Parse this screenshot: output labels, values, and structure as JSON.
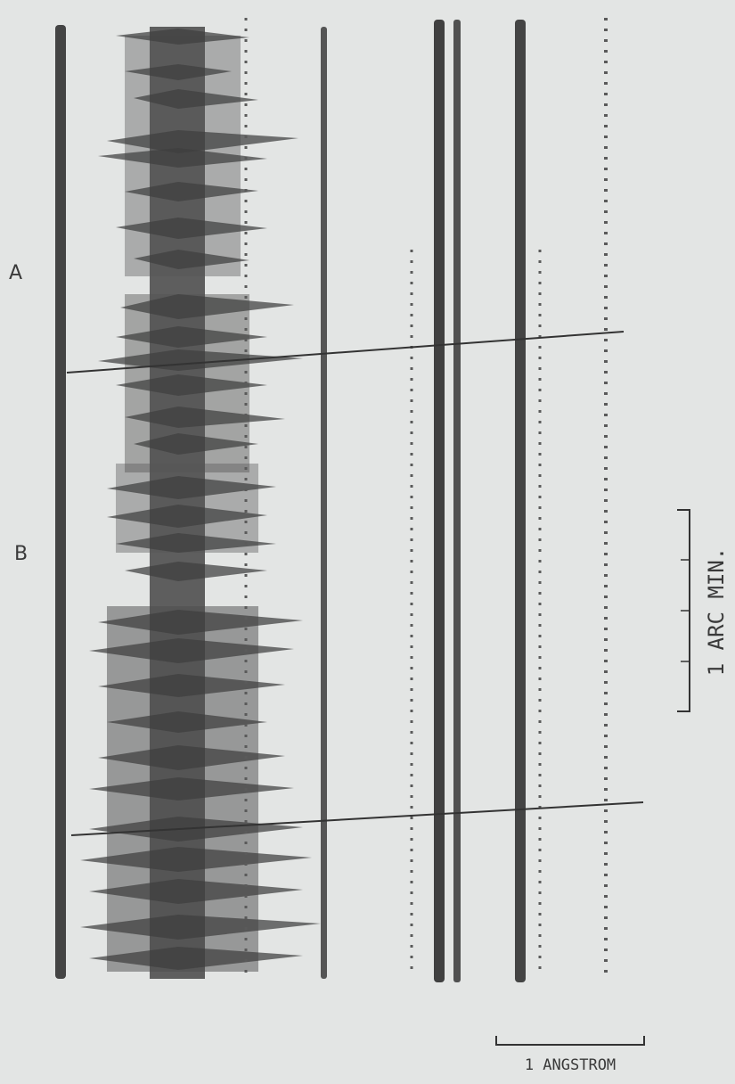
{
  "labels": {
    "a": "A",
    "b": "B",
    "arc_scale": "1 ARC MIN.",
    "wavelength_scale": "1 ANGSTROM"
  }
}
